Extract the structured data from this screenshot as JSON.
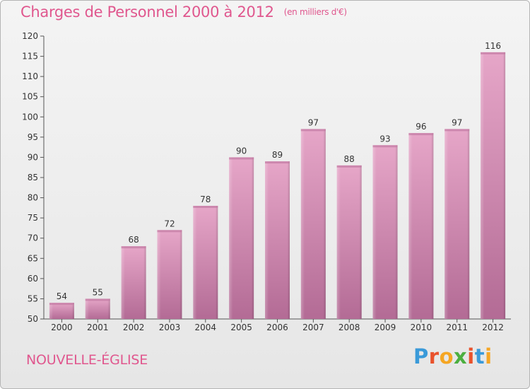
{
  "header": {
    "title": "Charges de Personnel 2000 à 2012",
    "subtitle": "(en milliers d'€)"
  },
  "footer": {
    "commune": "NOUVELLE-ÉGLISE",
    "logo": "Proxiti"
  },
  "colors": {
    "title": "#e0578e",
    "bar_top": "#e6a6c8",
    "bar_bottom": "#b36b95",
    "logo_letters": [
      "#3a9ad9",
      "#e9522c",
      "#f5a623",
      "#4caf3f",
      "#e9522c",
      "#3a9ad9",
      "#f5a623"
    ]
  },
  "chart_data": {
    "type": "bar",
    "title": "Charges de Personnel 2000 à 2012",
    "subtitle": "(en milliers d'€)",
    "categories": [
      "2000",
      "2001",
      "2002",
      "2003",
      "2004",
      "2005",
      "2006",
      "2007",
      "2008",
      "2009",
      "2010",
      "2011",
      "2012"
    ],
    "values": [
      54,
      55,
      68,
      72,
      78,
      90,
      89,
      97,
      88,
      93,
      96,
      97,
      116
    ],
    "data_labels": [
      "54",
      "55",
      "68",
      "72",
      "78",
      "90",
      "89",
      "97",
      "88",
      "93",
      "96",
      "97",
      "116"
    ],
    "ylim": [
      50,
      120
    ],
    "yticks": [
      50,
      55,
      60,
      65,
      70,
      75,
      80,
      85,
      90,
      95,
      100,
      105,
      110,
      115,
      120
    ],
    "grid": false
  }
}
